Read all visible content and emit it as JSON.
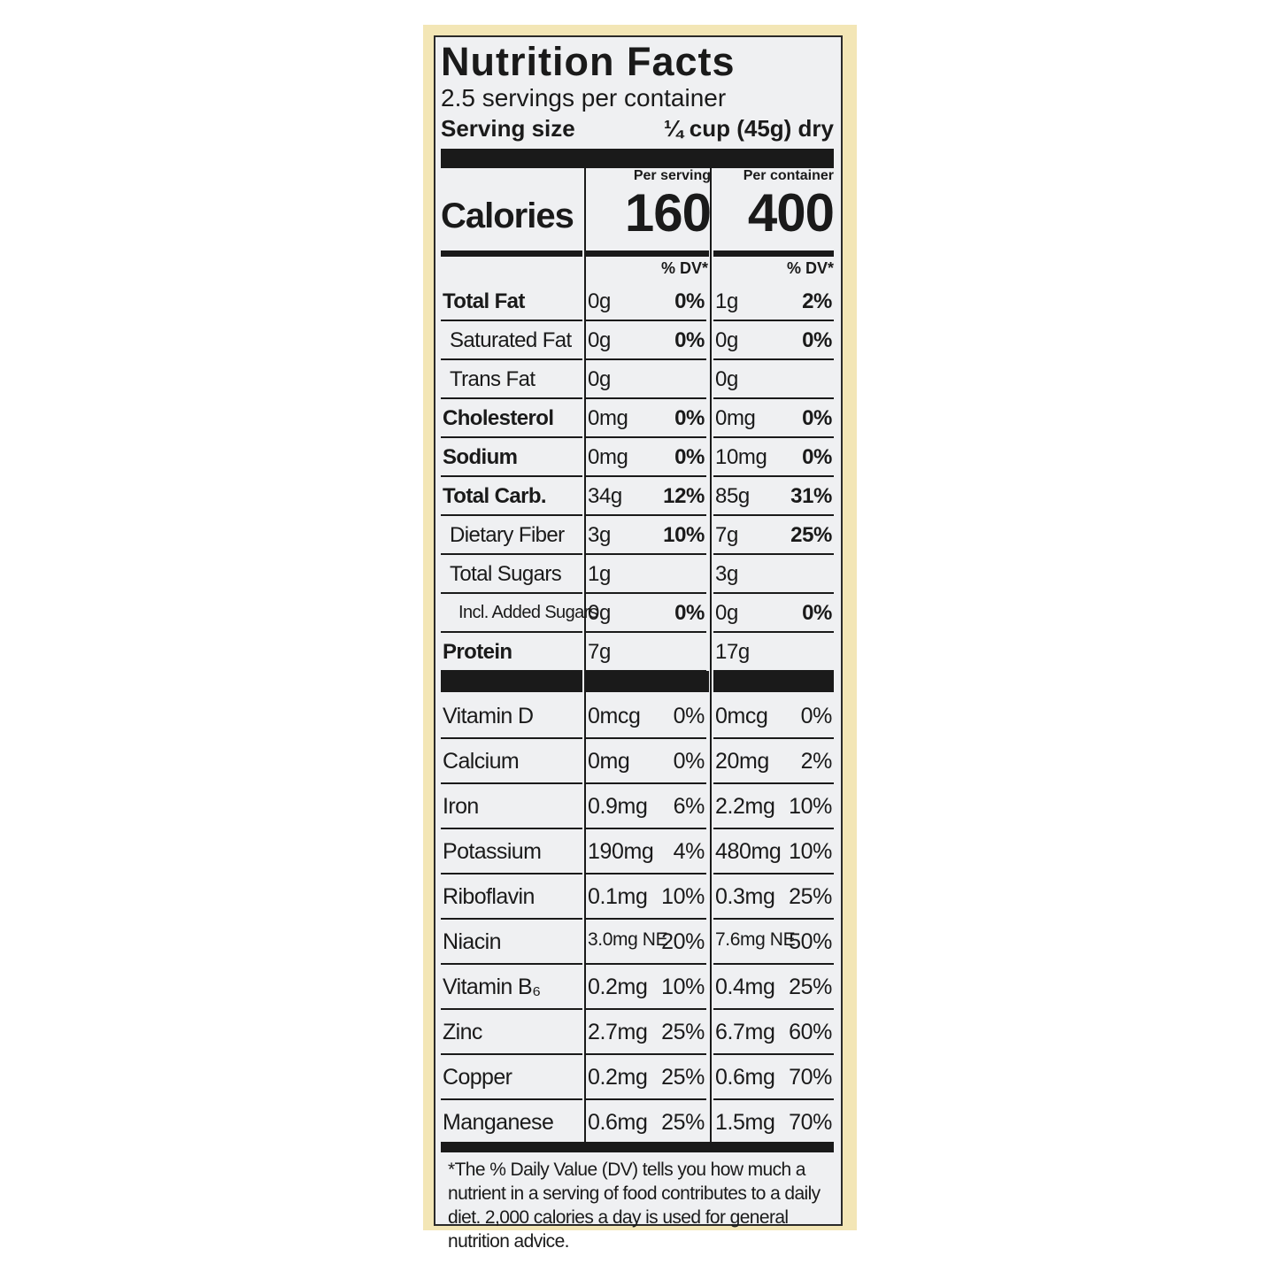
{
  "title": "Nutrition Facts",
  "servings": "2.5 servings per container",
  "serving_size": {
    "label": "Serving size",
    "value": "¼ cup (45g) dry"
  },
  "columns": [
    "Per serving",
    "Per container"
  ],
  "calories": {
    "label": "Calories",
    "values": [
      "160",
      "400"
    ]
  },
  "dv_header": [
    "% DV*",
    "% DV*"
  ],
  "nutrients": [
    {
      "name": "Total Fat",
      "values": [
        [
          "0g",
          "0%"
        ],
        [
          "1g",
          "2%"
        ]
      ]
    },
    {
      "name": "Saturated Fat",
      "values": [
        [
          "0g",
          "0%"
        ],
        [
          "0g",
          "0%"
        ]
      ]
    },
    {
      "name": "Trans Fat",
      "values": [
        [
          "0g"
        ],
        [
          "0g"
        ]
      ]
    },
    {
      "name": "Cholesterol",
      "values": [
        [
          "0mg",
          "0%"
        ],
        [
          "0mg",
          "0%"
        ]
      ]
    },
    {
      "name": "Sodium",
      "values": [
        [
          "0mg",
          "0%"
        ],
        [
          "10mg",
          "0%"
        ]
      ]
    },
    {
      "name": "Total Carb.",
      "values": [
        [
          "34g",
          "12%"
        ],
        [
          "85g",
          "31%"
        ]
      ]
    },
    {
      "name": "Dietary Fiber",
      "values": [
        [
          "3g",
          "10%"
        ],
        [
          "7g",
          "25%"
        ]
      ]
    },
    {
      "name": "Total Sugars",
      "values": [
        [
          "1g"
        ],
        [
          "3g"
        ]
      ]
    },
    {
      "name": "Incl. Added Sugars",
      "values": [
        [
          "0g",
          "0%"
        ],
        [
          "0g",
          "0%"
        ]
      ]
    },
    {
      "name": "Protein",
      "values": [
        [
          "7g"
        ],
        [
          "17g"
        ]
      ]
    }
  ],
  "vitamins": [
    {
      "name": "Vitamin D",
      "values": [
        [
          "0mcg",
          "0%"
        ],
        [
          "0mcg",
          "0%"
        ]
      ]
    },
    {
      "name": "Calcium",
      "values": [
        [
          "0mg",
          "0%"
        ],
        [
          "20mg",
          "2%"
        ]
      ]
    },
    {
      "name": "Iron",
      "values": [
        [
          "0.9mg",
          "6%"
        ],
        [
          "2.2mg",
          "10%"
        ]
      ]
    },
    {
      "name": "Potassium",
      "values": [
        [
          "190mg",
          "4%"
        ],
        [
          "480mg",
          "10%"
        ]
      ]
    },
    {
      "name": "Riboflavin",
      "values": [
        [
          "0.1mg",
          "10%"
        ],
        [
          "0.3mg",
          "25%"
        ]
      ]
    },
    {
      "name": "Niacin",
      "values": [
        [
          "3.0mg NE",
          "20%"
        ],
        [
          "7.6mg NE",
          "50%"
        ]
      ]
    },
    {
      "name": "Vitamin B₆",
      "values": [
        [
          "0.2mg",
          "10%"
        ],
        [
          "0.4mg",
          "25%"
        ]
      ]
    },
    {
      "name": "Zinc",
      "values": [
        [
          "2.7mg",
          "25%"
        ],
        [
          "6.7mg",
          "60%"
        ]
      ]
    },
    {
      "name": "Copper",
      "values": [
        [
          "0.2mg",
          "25%"
        ],
        [
          "0.6mg",
          "70%"
        ]
      ]
    },
    {
      "name": "Manganese",
      "values": [
        [
          "0.6mg",
          "25%"
        ],
        [
          "1.5mg",
          "70%"
        ]
      ]
    }
  ],
  "footnote": "*The % Daily Value (DV) tells you how much a nutrient in a serving of food contributes to a daily diet. 2,000 calories a day is used for general nutrition advice."
}
